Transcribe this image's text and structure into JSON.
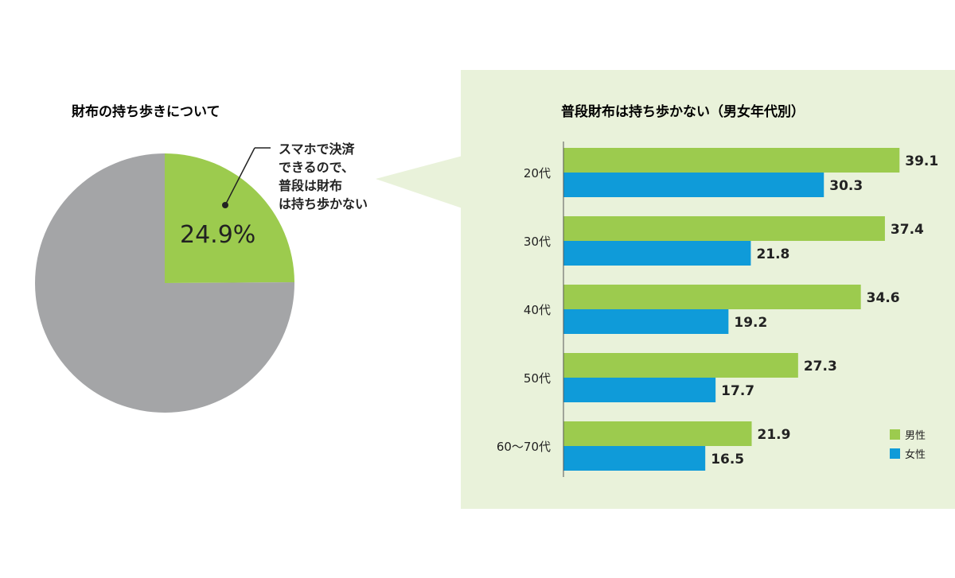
{
  "colors": {
    "green": "#9ccb4e",
    "blue": "#0f9bd9",
    "gray": "#a4a5a7",
    "panel": "#e9f2da",
    "text": "#222222"
  },
  "chart_data": [
    {
      "type": "pie",
      "title": "財布の持ち歩きについて",
      "slices": [
        {
          "label": "スマホで決済\nできるので、\n普段は財布\nは持ち歩かない",
          "value": 24.9,
          "display": "24.9%",
          "color": "#9ccb4e"
        },
        {
          "label": "",
          "value": 75.1,
          "display": "",
          "color": "#a4a5a7"
        }
      ]
    },
    {
      "type": "bar",
      "orientation": "horizontal",
      "title": "普段財布は持ち歩かない（男女年代別）",
      "categories": [
        "20代",
        "30代",
        "40代",
        "50代",
        "60〜70代"
      ],
      "series": [
        {
          "name": "男性",
          "values": [
            39.1,
            37.4,
            34.6,
            27.3,
            21.9
          ],
          "labels": [
            "39.1",
            "37.4",
            "34.6",
            "27.3",
            "21.9"
          ],
          "color": "#9ccb4e"
        },
        {
          "name": "女性",
          "values": [
            30.3,
            21.8,
            19.2,
            17.7,
            16.5
          ],
          "labels": [
            "30.3",
            "21.8",
            "19.2",
            "17.7",
            "16.5"
          ],
          "color": "#0f9bd9"
        }
      ],
      "legend_position": "bottom-right",
      "grid": false
    }
  ]
}
